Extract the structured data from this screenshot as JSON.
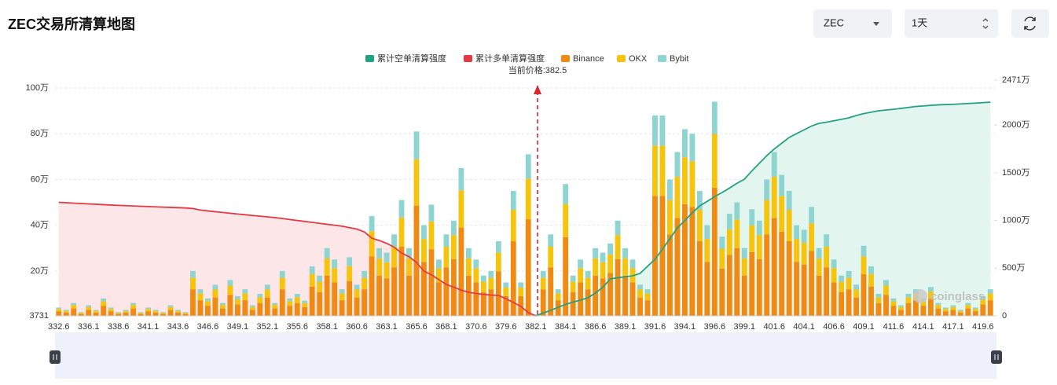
{
  "controls": {
    "symbol": "ZEC",
    "interval": "1天"
  },
  "chart_data": {
    "type": "bar",
    "title": "ZEC交易所清算地图",
    "annotation": "当前价格:382.5",
    "watermark": "coinglass",
    "categories": [
      "332.6",
      null,
      null,
      null,
      "336.1",
      null,
      null,
      null,
      "338.6",
      null,
      null,
      null,
      "341.1",
      null,
      null,
      null,
      "343.6",
      null,
      null,
      null,
      "346.6",
      null,
      null,
      null,
      "349.1",
      null,
      null,
      null,
      "352.1",
      null,
      null,
      null,
      "355.6",
      null,
      null,
      null,
      "358.1",
      null,
      null,
      null,
      "360.6",
      null,
      null,
      null,
      "363.1",
      null,
      null,
      null,
      "365.6",
      null,
      null,
      null,
      "368.1",
      null,
      null,
      null,
      "370.6",
      null,
      null,
      null,
      "379.6",
      null,
      null,
      null,
      "382.1",
      null,
      null,
      null,
      "384.1",
      null,
      null,
      null,
      "386.6",
      null,
      null,
      null,
      "389.1",
      null,
      null,
      null,
      "391.6",
      null,
      null,
      null,
      "394.1",
      null,
      null,
      null,
      "396.6",
      null,
      null,
      null,
      "399.1",
      null,
      null,
      null,
      "401.6",
      null,
      null,
      null,
      "404.1",
      null,
      null,
      null,
      "406.6",
      null,
      null,
      null,
      "409.1",
      null,
      null,
      null,
      "411.6",
      null,
      null,
      null,
      "414.1",
      null,
      null,
      null,
      "417.1",
      null,
      null,
      null,
      "419.6",
      null
    ],
    "ylim": [
      3731,
      1000000
    ],
    "yticks": [
      3731,
      {
        "value": 200000,
        "label": "20万"
      },
      {
        "value": 400000,
        "label": "40万"
      },
      {
        "value": 600000,
        "label": "60万"
      },
      {
        "value": 800000,
        "label": "80万"
      },
      {
        "value": 1000000,
        "label": "100万"
      }
    ],
    "y2lim": [
      0,
      24710000
    ],
    "y2ticks": [
      0,
      {
        "value": 5000000,
        "label": "500万"
      },
      {
        "value": 10000000,
        "label": "1000万"
      },
      {
        "value": 15000000,
        "label": "1500万"
      },
      {
        "value": 20000000,
        "label": "2000万"
      },
      {
        "value": 24710000,
        "label": "2471万"
      }
    ],
    "grid": true,
    "legend": "top",
    "series": [
      {
        "name": "累计空单清算强度",
        "type": "line",
        "axis": "y2",
        "color": "#22a37f",
        "area_color": "#e2f5ee",
        "values": [
          null,
          null,
          null,
          null,
          null,
          null,
          null,
          null,
          null,
          null,
          null,
          null,
          null,
          null,
          null,
          null,
          null,
          null,
          null,
          null,
          null,
          null,
          null,
          null,
          null,
          null,
          null,
          null,
          null,
          null,
          null,
          null,
          null,
          null,
          null,
          null,
          null,
          null,
          null,
          null,
          null,
          null,
          null,
          null,
          null,
          null,
          null,
          null,
          null,
          null,
          null,
          null,
          null,
          null,
          null,
          null,
          null,
          null,
          null,
          null,
          null,
          null,
          null,
          null,
          0,
          300000,
          580000,
          900000,
          1200000,
          1450000,
          1650000,
          1900000,
          2400000,
          3000000,
          3870000,
          4000000,
          4100000,
          4200000,
          4450000,
          5200000,
          5930000,
          7000000,
          8100000,
          9220000,
          10000000,
          10800000,
          11530000,
          12000000,
          12500000,
          12930000,
          13400000,
          13900000,
          14330000,
          15200000,
          16000000,
          16800000,
          17500000,
          18100000,
          18700000,
          19100000,
          19500000,
          19900000,
          20180000,
          20300000,
          20450000,
          20600000,
          20760000,
          21000000,
          21200000,
          21350000,
          21500000,
          21580000,
          21650000,
          21750000,
          21850000,
          21950000,
          22000000,
          22070000,
          22120000,
          22150000,
          22180000,
          22220000,
          22260000,
          22300000,
          22350000,
          22400000
        ]
      },
      {
        "name": "累计多单清算强度",
        "type": "line",
        "axis": "y2",
        "color": "#e33a45",
        "area_color": "#fde6e7",
        "values": [
          11900000,
          11860000,
          11820000,
          11780000,
          11740000,
          11700000,
          11660000,
          11620000,
          11580000,
          11550000,
          11520000,
          11490000,
          11460000,
          11430000,
          11400000,
          11370000,
          11340000,
          11310000,
          11250000,
          11100000,
          11000000,
          10920000,
          10840000,
          10760000,
          10680000,
          10600000,
          10520000,
          10450000,
          10380000,
          10300000,
          10200000,
          10100000,
          10000000,
          9900000,
          9800000,
          9700000,
          9600000,
          9500000,
          9400000,
          9250000,
          9100000,
          8800000,
          8150000,
          7900000,
          7600000,
          7200000,
          6590000,
          6200000,
          5600000,
          4700000,
          4300000,
          3800000,
          3300000,
          3000000,
          2700000,
          2470000,
          2350000,
          2250000,
          2180000,
          2140000,
          1800000,
          1400000,
          1000000,
          330000,
          0,
          null,
          null,
          null,
          null,
          null,
          null,
          null,
          null,
          null,
          null,
          null,
          null,
          null,
          null,
          null,
          null,
          null,
          null,
          null,
          null,
          null,
          null,
          null,
          null,
          null,
          null,
          null,
          null,
          null,
          null,
          null,
          null,
          null,
          null,
          null,
          null,
          null,
          null,
          null,
          null,
          null,
          null,
          null,
          null,
          null,
          null,
          null,
          null,
          null,
          null,
          null,
          null,
          null,
          null,
          null,
          null,
          null,
          null,
          null,
          null,
          null
        ]
      },
      {
        "name": "Binance",
        "type": "bar",
        "color": "#f08a12",
        "values": [
          24000,
          18000,
          36000,
          12000,
          30000,
          18000,
          48000,
          24000,
          12000,
          18000,
          36000,
          12000,
          24000,
          18000,
          12000,
          30000,
          18000,
          12000,
          120000,
          72000,
          48000,
          84000,
          36000,
          96000,
          54000,
          72000,
          30000,
          60000,
          84000,
          36000,
          120000,
          48000,
          60000,
          42000,
          132000,
          108000,
          180000,
          150000,
          72000,
          156000,
          84000,
          120000,
          264000,
          180000,
          168000,
          216000,
          306000,
          180000,
          486000,
          240000,
          294000,
          150000,
          216000,
          252000,
          390000,
          180000,
          150000,
          108000,
          120000,
          198000,
          90000,
          330000,
          90000,
          426000,
          6000,
          120000,
          216000,
          72000,
          348000,
          108000,
          150000,
          120000,
          180000,
          168000,
          192000,
          252000,
          180000,
          150000,
          84000,
          72000,
          528000,
          528000,
          360000,
          432000,
          492000,
          480000,
          330000,
          240000,
          564000,
          210000,
          270000,
          300000,
          180000,
          282000,
          252000,
          360000,
          432000,
          372000,
          330000,
          240000,
          228000,
          288000,
          180000,
          216000,
          150000,
          108000,
          120000,
          84000,
          186000,
          132000,
          60000,
          96000,
          48000,
          30000,
          60000,
          72000,
          48000,
          78000,
          36000,
          24000,
          30000,
          18000,
          36000,
          24000,
          54000,
          72000
        ]
      },
      {
        "name": "OKX",
        "type": "bar",
        "color": "#f6c40c",
        "values": [
          10000,
          7500,
          15000,
          5000,
          12500,
          7500,
          20000,
          10000,
          5000,
          7500,
          15000,
          5000,
          10000,
          7500,
          5000,
          12500,
          7500,
          5000,
          50000,
          30000,
          20000,
          35000,
          15000,
          40000,
          22500,
          30000,
          12500,
          25000,
          35000,
          15000,
          50000,
          20000,
          25000,
          17500,
          55000,
          45000,
          75000,
          62500,
          30000,
          65000,
          35000,
          50000,
          110000,
          75000,
          70000,
          90000,
          127500,
          75000,
          202500,
          100000,
          122500,
          62500,
          90000,
          105000,
          162500,
          75000,
          62500,
          45000,
          50000,
          82500,
          37500,
          137500,
          37500,
          177500,
          2500,
          50000,
          90000,
          30000,
          145000,
          45000,
          62500,
          50000,
          75000,
          70000,
          80000,
          105000,
          75000,
          62500,
          35000,
          30000,
          220000,
          220000,
          150000,
          180000,
          205000,
          200000,
          137500,
          100000,
          235000,
          87500,
          112500,
          125000,
          75000,
          117500,
          105000,
          150000,
          180000,
          155000,
          137500,
          100000,
          95000,
          120000,
          75000,
          90000,
          62500,
          45000,
          50000,
          35000,
          77500,
          55000,
          25000,
          40000,
          20000,
          12500,
          25000,
          30000,
          20000,
          32500,
          15000,
          10000,
          12500,
          7500,
          15000,
          10000,
          22500,
          30000
        ]
      },
      {
        "name": "Bybit",
        "type": "bar",
        "color": "#8ed4d1",
        "values": [
          6000,
          4500,
          9000,
          3000,
          7500,
          4500,
          12000,
          6000,
          3000,
          4500,
          9000,
          3000,
          6000,
          4500,
          3000,
          7500,
          4500,
          3000,
          30000,
          18000,
          12000,
          21000,
          9000,
          24000,
          13500,
          18000,
          7500,
          15000,
          21000,
          9000,
          30000,
          12000,
          15000,
          10500,
          33000,
          27000,
          45000,
          37500,
          18000,
          39000,
          21000,
          30000,
          66000,
          45000,
          42000,
          54000,
          76500,
          45000,
          121500,
          60000,
          73500,
          37500,
          54000,
          63000,
          97500,
          45000,
          37500,
          27000,
          30000,
          49500,
          22500,
          82500,
          22500,
          106500,
          1500,
          30000,
          54000,
          18000,
          87000,
          27000,
          37500,
          30000,
          45000,
          42000,
          48000,
          63000,
          45000,
          37500,
          21000,
          18000,
          132000,
          132000,
          90000,
          108000,
          123000,
          120000,
          82500,
          60000,
          141000,
          52500,
          67500,
          75000,
          45000,
          70500,
          63000,
          90000,
          108000,
          93000,
          82500,
          60000,
          57000,
          72000,
          45000,
          54000,
          37500,
          27000,
          30000,
          21000,
          46500,
          33000,
          15000,
          24000,
          12000,
          7500,
          15000,
          18000,
          12000,
          19500,
          9000,
          6000,
          7500,
          4500,
          9000,
          6000,
          13500,
          18000
        ]
      }
    ]
  }
}
